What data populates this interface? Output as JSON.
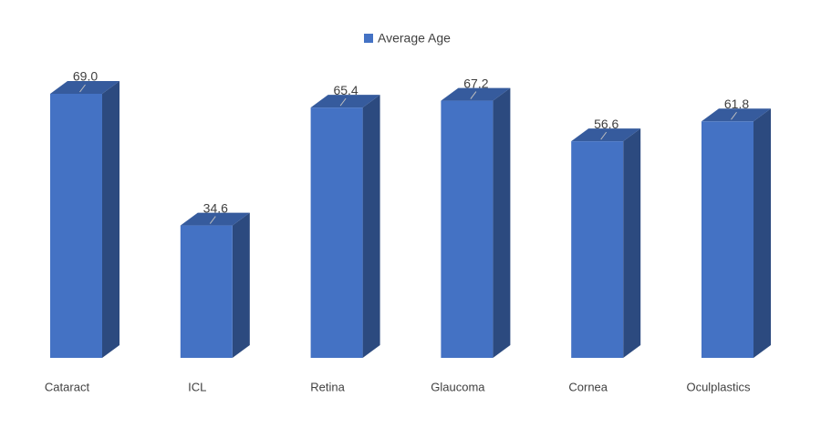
{
  "chart_data": {
    "type": "bar3d",
    "categories": [
      "Cataract",
      "ICL",
      "Retina",
      "Glaucoma",
      "Cornea",
      "Oculplastics"
    ],
    "series": [
      {
        "name": "Average Age",
        "color": "#4472c4",
        "values": [
          69.0,
          34.6,
          65.4,
          67.2,
          56.6,
          61.8
        ],
        "value_labels": [
          "69.0",
          "34.6",
          "65.4",
          "67.2",
          "56.6",
          "61.8"
        ]
      }
    ],
    "legend": "top"
  }
}
